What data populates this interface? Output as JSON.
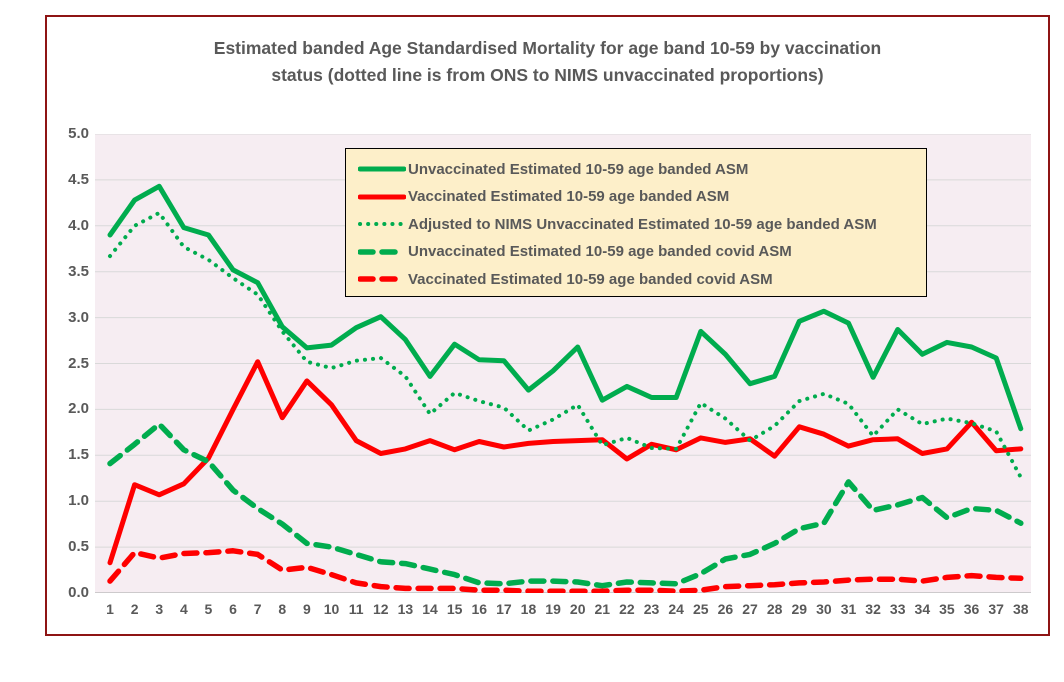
{
  "title": {
    "lines": [
      "Estimated banded Age Standardised Mortality for age band 10-59 by vaccination",
      "status (dotted line is from ONS to NIMS unvaccinated proportions)"
    ]
  },
  "colors": {
    "green": "#00AC4E",
    "red": "#FF0000",
    "frame_border": "#8E1414",
    "plot_background": "#F6EDF2",
    "gridline": "#D9D9D9",
    "axis_line": "#BFBFBF",
    "legend_background": "#FDEFC9",
    "legend_border": "#000000",
    "text": "#595959"
  },
  "y_axis": {
    "tick_labels_top_down": [
      "5.0",
      "4.5",
      "4.0",
      "3.5",
      "3.0",
      "2.5",
      "2.0",
      "1.5",
      "1.0",
      "0.5",
      "0.0"
    ]
  },
  "chart_data": {
    "type": "line",
    "x": [
      1,
      2,
      3,
      4,
      5,
      6,
      7,
      8,
      9,
      10,
      11,
      12,
      13,
      14,
      15,
      16,
      17,
      18,
      19,
      20,
      21,
      22,
      23,
      24,
      25,
      26,
      27,
      28,
      29,
      30,
      31,
      32,
      33,
      34,
      35,
      36,
      37,
      38
    ],
    "ylim": [
      0,
      5
    ],
    "y_tick_step": 0.5,
    "grid": true,
    "legend_position": "top-center-inside",
    "title": "Estimated banded Age Standardised Mortality for age band 10-59 by vaccination status (dotted line is from ONS to NIMS unvaccinated proportions)",
    "series": [
      {
        "name": "Unvaccinated Estimated 10-59 age banded ASM",
        "color": "#00AC4E",
        "style": "solid",
        "values": [
          3.9,
          4.28,
          4.43,
          3.98,
          3.9,
          3.52,
          3.38,
          2.9,
          2.67,
          2.7,
          2.89,
          3.01,
          2.76,
          2.36,
          2.71,
          2.54,
          2.53,
          2.21,
          2.42,
          2.68,
          2.1,
          2.25,
          2.13,
          2.13,
          2.85,
          2.6,
          2.28,
          2.36,
          2.96,
          3.07,
          2.94,
          2.35,
          2.87,
          2.6,
          2.73,
          2.68,
          2.56,
          1.79
        ]
      },
      {
        "name": "Vaccinated Estimated 10-59 age banded ASM",
        "color": "#FF0000",
        "style": "solid",
        "values": [
          0.33,
          1.18,
          1.07,
          1.19,
          1.47,
          2.0,
          2.52,
          1.91,
          2.31,
          2.05,
          1.66,
          1.52,
          1.57,
          1.66,
          1.56,
          1.65,
          1.59,
          1.63,
          1.65,
          1.66,
          1.67,
          1.46,
          1.62,
          1.56,
          1.69,
          1.64,
          1.68,
          1.49,
          1.81,
          1.73,
          1.6,
          1.67,
          1.68,
          1.52,
          1.57,
          1.86,
          1.55,
          1.57
        ]
      },
      {
        "name": "Adjusted to NIMS Unvaccinated Estimated 10-59 age banded ASM",
        "color": "#00AC4E",
        "style": "dotted",
        "values": [
          3.67,
          4.0,
          4.14,
          3.77,
          3.63,
          3.43,
          3.25,
          2.85,
          2.52,
          2.45,
          2.53,
          2.56,
          2.36,
          1.95,
          2.18,
          2.09,
          2.02,
          1.77,
          1.89,
          2.05,
          1.61,
          1.69,
          1.58,
          1.57,
          2.07,
          1.9,
          1.66,
          1.82,
          2.09,
          2.17,
          2.06,
          1.71,
          2.0,
          1.84,
          1.9,
          1.85,
          1.76,
          1.26
        ]
      },
      {
        "name": "Unvaccinated Estimated 10-59 age banded covid ASM",
        "color": "#00AC4E",
        "style": "dashed",
        "values": [
          1.41,
          1.62,
          1.84,
          1.56,
          1.43,
          1.12,
          0.92,
          0.75,
          0.54,
          0.5,
          0.42,
          0.34,
          0.32,
          0.26,
          0.2,
          0.11,
          0.1,
          0.13,
          0.13,
          0.12,
          0.08,
          0.12,
          0.11,
          0.1,
          0.21,
          0.37,
          0.42,
          0.54,
          0.7,
          0.76,
          1.21,
          0.9,
          0.96,
          1.04,
          0.82,
          0.92,
          0.9,
          0.76
        ]
      },
      {
        "name": "Vaccinated Estimated 10-59 age banded covid ASM",
        "color": "#FF0000",
        "style": "dashed",
        "values": [
          0.13,
          0.44,
          0.38,
          0.43,
          0.44,
          0.46,
          0.42,
          0.25,
          0.28,
          0.2,
          0.11,
          0.07,
          0.05,
          0.05,
          0.05,
          0.03,
          0.03,
          0.02,
          0.02,
          0.02,
          0.02,
          0.03,
          0.03,
          0.02,
          0.03,
          0.07,
          0.08,
          0.09,
          0.11,
          0.12,
          0.14,
          0.15,
          0.15,
          0.13,
          0.17,
          0.19,
          0.17,
          0.16
        ]
      }
    ]
  }
}
